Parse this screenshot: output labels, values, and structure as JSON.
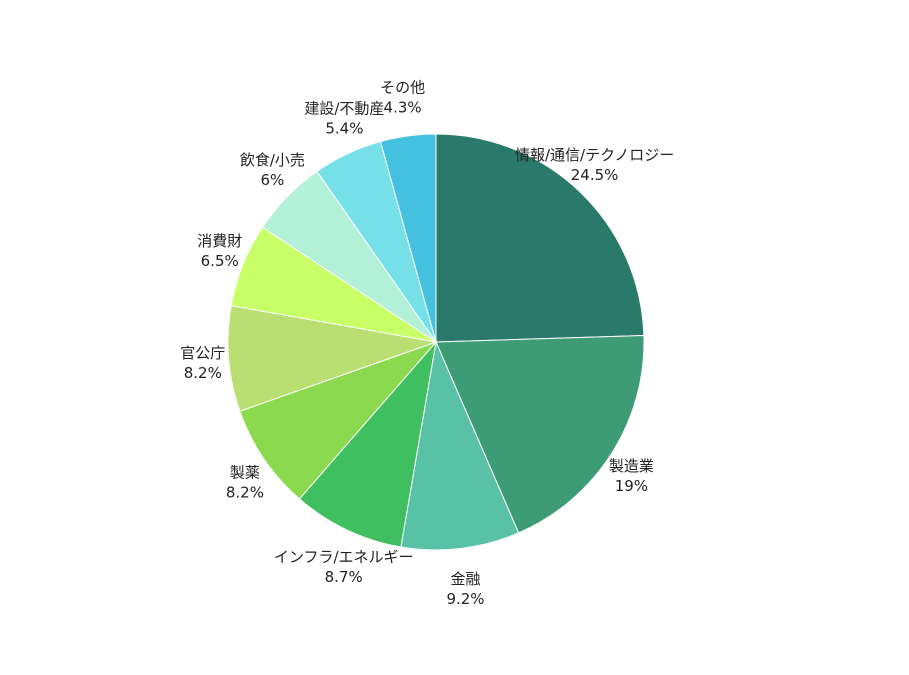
{
  "chart_data": {
    "type": "pie",
    "start_angle_deg": 0,
    "direction": "clockwise",
    "slices": [
      {
        "label": "情報/通信/テクノロジー",
        "value": 24.5,
        "display": "24.5%",
        "color": "#2a7a6c"
      },
      {
        "label": "製造業",
        "value": 19,
        "display": "19%",
        "color": "#3d9b76"
      },
      {
        "label": "金融",
        "value": 9.2,
        "display": "9.2%",
        "color": "#59c2a6"
      },
      {
        "label": "インフラ/エネルギー",
        "value": 8.7,
        "display": "8.7%",
        "color": "#3fbf5f"
      },
      {
        "label": "製薬",
        "value": 8.2,
        "display": "8.2%",
        "color": "#8ad94e"
      },
      {
        "label": "官公庁",
        "value": 8.2,
        "display": "8.2%",
        "color": "#b9df72"
      },
      {
        "label": "消費財",
        "value": 6.5,
        "display": "6.5%",
        "color": "#c8ff66"
      },
      {
        "label": "飲食/小売",
        "value": 6,
        "display": "6%",
        "color": "#b2f0d8"
      },
      {
        "label": "建設/不動産",
        "value": 5.4,
        "display": "5.4%",
        "color": "#76e0e8"
      },
      {
        "label": "その他",
        "value": 4.3,
        "display": "4.3%",
        "color": "#45c1e0"
      }
    ]
  }
}
